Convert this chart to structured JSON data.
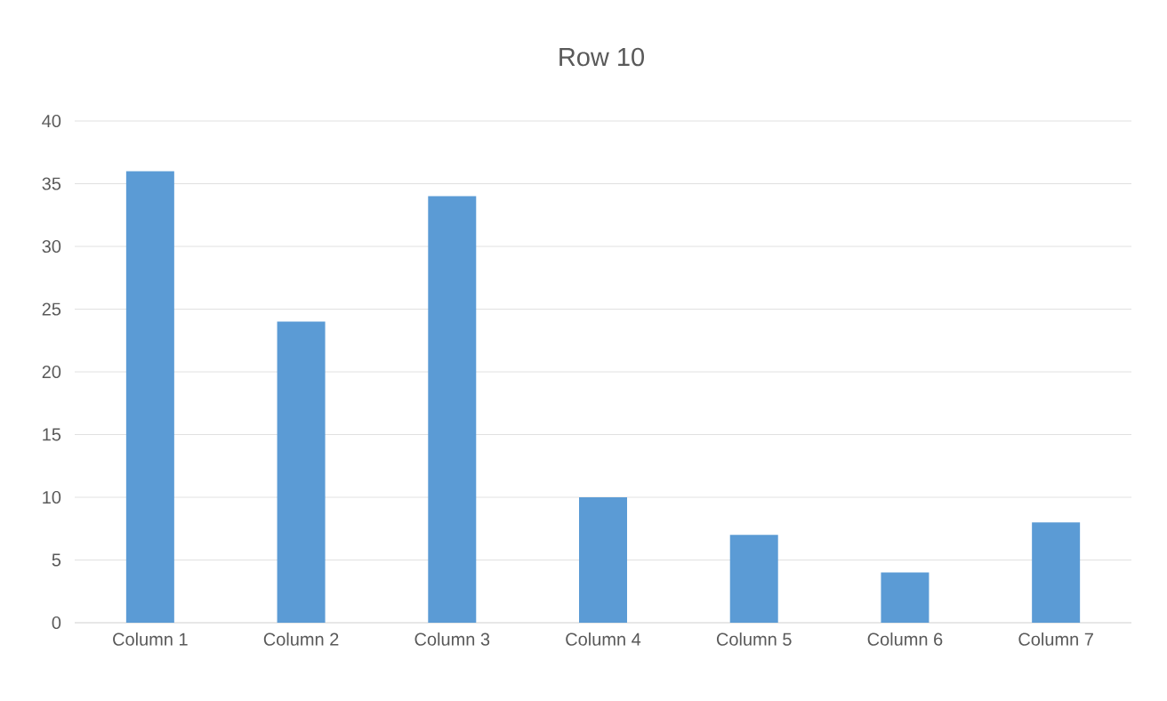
{
  "chart_data": {
    "type": "bar",
    "title": "Row 10",
    "categories": [
      "Column 1",
      "Column 2",
      "Column 3",
      "Column 4",
      "Column 5",
      "Column 6",
      "Column 7"
    ],
    "values": [
      36,
      24,
      34,
      10,
      7,
      4,
      8
    ],
    "color": "#5b9bd5",
    "ylim": [
      0,
      40
    ],
    "yticks": [
      0,
      5,
      10,
      15,
      20,
      25,
      30,
      35,
      40
    ],
    "grid": "y"
  }
}
